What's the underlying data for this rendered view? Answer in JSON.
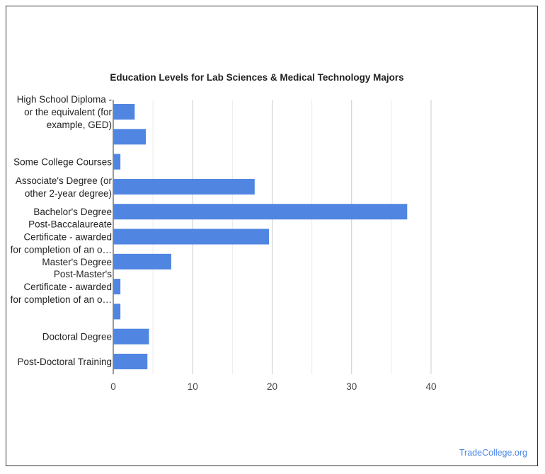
{
  "chart_data": {
    "type": "bar",
    "orientation": "horizontal",
    "title": "Education Levels for Lab Sciences & Medical Technology Majors",
    "categories": [
      [
        "High School Diploma -",
        "or the equivalent (for",
        "example, GED)"
      ],
      [],
      [
        "Some College Courses"
      ],
      [
        "Associate's Degree (or",
        "other 2-year degree)"
      ],
      [
        "Bachelor's Degree"
      ],
      [
        "Post-Baccalaureate",
        "Certificate - awarded",
        "for completion of an o…"
      ],
      [
        "Master's Degree"
      ],
      [
        "Post-Master's",
        "Certificate - awarded",
        "for completion of an o…"
      ],
      [],
      [
        "Doctoral Degree"
      ],
      [
        "Post-Doctoral Training"
      ]
    ],
    "values": [
      2.7,
      4.1,
      0.9,
      17.8,
      37.0,
      19.6,
      7.3,
      0.9,
      0.9,
      4.5,
      4.3
    ],
    "xlim": [
      0,
      40
    ],
    "xticks": [
      0,
      10,
      20,
      30,
      40
    ],
    "minor_grid_step": 5,
    "grid": true,
    "bar_color": "#5086e2",
    "xlabel": "",
    "ylabel": ""
  },
  "credit": "TradeCollege.org"
}
